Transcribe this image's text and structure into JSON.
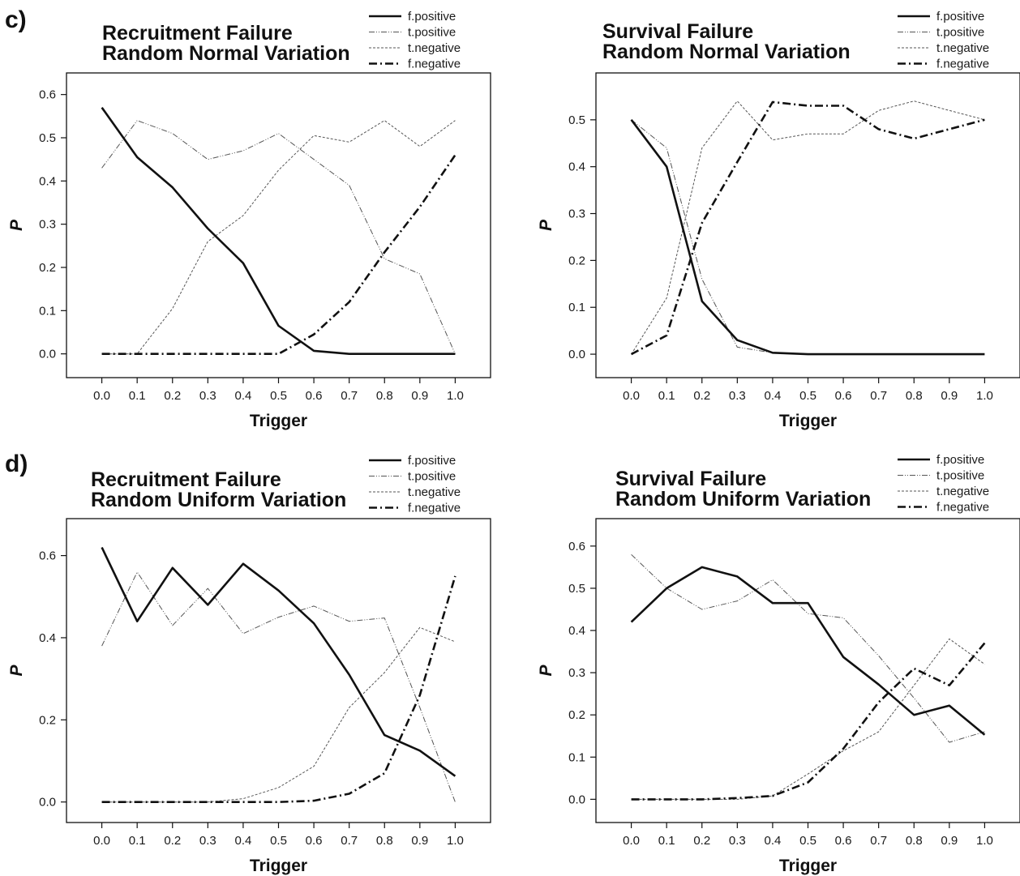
{
  "panel_labels": [
    "c)",
    "d)"
  ],
  "styles": {
    "f.positive": {
      "color": "#111111",
      "width": 2.6,
      "dash": ""
    },
    "t.positive": {
      "color": "#555555",
      "width": 1.0,
      "dash": "7,2,1,2,1,2"
    },
    "t.negative": {
      "color": "#555555",
      "width": 1.0,
      "dash": "3,2"
    },
    "f.negative": {
      "color": "#111111",
      "width": 2.6,
      "dash": "10,4,2,4"
    }
  },
  "chart_data": [
    {
      "type": "line",
      "title": [
        "Recruitment Failure",
        "Random Normal Variation"
      ],
      "xlabel": "Trigger",
      "ylabel": "P",
      "x": [
        0.0,
        0.1,
        0.2,
        0.3,
        0.4,
        0.5,
        0.6,
        0.7,
        0.8,
        0.9,
        1.0
      ],
      "xticks": [
        "0.0",
        "0.1",
        "0.2",
        "0.3",
        "0.4",
        "0.5",
        "0.6",
        "0.7",
        "0.8",
        "0.9",
        "1.0"
      ],
      "yticks": [
        "0.0",
        "0.1",
        "0.2",
        "0.3",
        "0.4",
        "0.5",
        "0.6"
      ],
      "ytick_values": [
        0.0,
        0.1,
        0.2,
        0.3,
        0.4,
        0.5,
        0.6
      ],
      "xlim": [
        -0.1,
        1.1
      ],
      "ylim": [
        -0.055,
        0.65
      ],
      "legend": [
        "f.positive",
        "t.positive",
        "t.negative",
        "f.negative"
      ],
      "series": [
        {
          "name": "f.positive",
          "values": [
            0.57,
            0.455,
            0.385,
            0.29,
            0.21,
            0.065,
            0.007,
            0.0,
            0.0,
            0.0,
            0.0
          ]
        },
        {
          "name": "t.positive",
          "values": [
            0.43,
            0.54,
            0.51,
            0.45,
            0.47,
            0.51,
            0.45,
            0.39,
            0.22,
            0.185,
            0.0
          ]
        },
        {
          "name": "t.negative",
          "values": [
            0.0,
            0.0,
            0.105,
            0.26,
            0.32,
            0.425,
            0.505,
            0.49,
            0.54,
            0.48,
            0.54
          ]
        },
        {
          "name": "f.negative",
          "values": [
            0.0,
            0.0,
            0.0,
            0.0,
            0.0,
            0.0,
            0.045,
            0.12,
            0.235,
            0.34,
            0.46
          ]
        }
      ]
    },
    {
      "type": "line",
      "title": [
        "Survival Failure",
        "Random Normal Variation"
      ],
      "xlabel": "Trigger",
      "ylabel": "P",
      "x": [
        0.0,
        0.1,
        0.2,
        0.3,
        0.4,
        0.5,
        0.6,
        0.7,
        0.8,
        0.9,
        1.0
      ],
      "xticks": [
        "0.0",
        "0.1",
        "0.2",
        "0.3",
        "0.4",
        "0.5",
        "0.6",
        "0.7",
        "0.8",
        "0.9",
        "1.0"
      ],
      "yticks": [
        "0.0",
        "0.1",
        "0.2",
        "0.3",
        "0.4",
        "0.5"
      ],
      "ytick_values": [
        0.0,
        0.1,
        0.2,
        0.3,
        0.4,
        0.5
      ],
      "xlim": [
        -0.1,
        1.1
      ],
      "ylim": [
        -0.05,
        0.6
      ],
      "legend": [
        "f.positive",
        "t.positive",
        "t.negative",
        "f.negative"
      ],
      "series": [
        {
          "name": "f.positive",
          "values": [
            0.5,
            0.4,
            0.113,
            0.03,
            0.003,
            0.0,
            0.0,
            0.0,
            0.0,
            0.0,
            0.0
          ]
        },
        {
          "name": "t.positive",
          "values": [
            0.5,
            0.44,
            0.16,
            0.015,
            0.003,
            0.0,
            0.0,
            0.0,
            0.0,
            0.0,
            0.0
          ]
        },
        {
          "name": "t.negative",
          "values": [
            0.0,
            0.12,
            0.44,
            0.54,
            0.457,
            0.47,
            0.47,
            0.52,
            0.54,
            0.52,
            0.5
          ]
        },
        {
          "name": "f.negative",
          "values": [
            0.0,
            0.04,
            0.28,
            0.41,
            0.538,
            0.53,
            0.53,
            0.48,
            0.46,
            0.48,
            0.5
          ]
        }
      ]
    },
    {
      "type": "line",
      "title": [
        "Recruitment Failure",
        "Random Uniform Variation"
      ],
      "xlabel": "Trigger",
      "ylabel": "P",
      "x": [
        0.0,
        0.1,
        0.2,
        0.3,
        0.4,
        0.5,
        0.6,
        0.7,
        0.8,
        0.9,
        1.0
      ],
      "xticks": [
        "0.0",
        "0.1",
        "0.2",
        "0.3",
        "0.4",
        "0.5",
        "0.6",
        "0.7",
        "0.8",
        "0.9",
        "1.0"
      ],
      "yticks": [
        "0.0",
        "0.2",
        "0.4",
        "0.6"
      ],
      "ytick_values": [
        0.0,
        0.2,
        0.4,
        0.6
      ],
      "xlim": [
        -0.1,
        1.1
      ],
      "ylim": [
        -0.05,
        0.69
      ],
      "legend": [
        "f.positive",
        "t.positive",
        "t.negative",
        "f.negative"
      ],
      "series": [
        {
          "name": "f.positive",
          "values": [
            0.62,
            0.44,
            0.57,
            0.48,
            0.58,
            0.515,
            0.435,
            0.31,
            0.163,
            0.125,
            0.063
          ]
        },
        {
          "name": "t.positive",
          "values": [
            0.38,
            0.56,
            0.43,
            0.52,
            0.41,
            0.45,
            0.477,
            0.44,
            0.448,
            0.23,
            0.0
          ]
        },
        {
          "name": "t.negative",
          "values": [
            0.0,
            0.0,
            0.0,
            0.0,
            0.008,
            0.035,
            0.087,
            0.23,
            0.315,
            0.425,
            0.39
          ]
        },
        {
          "name": "f.negative",
          "values": [
            0.0,
            0.0,
            0.0,
            0.0,
            0.0,
            0.0,
            0.003,
            0.02,
            0.07,
            0.26,
            0.55
          ]
        }
      ]
    },
    {
      "type": "line",
      "title": [
        "Survival Failure",
        "Random Uniform Variation"
      ],
      "xlabel": "Trigger",
      "ylabel": "P",
      "x": [
        0.0,
        0.1,
        0.2,
        0.3,
        0.4,
        0.5,
        0.6,
        0.7,
        0.8,
        0.9,
        1.0
      ],
      "xticks": [
        "0.0",
        "0.1",
        "0.2",
        "0.3",
        "0.4",
        "0.5",
        "0.6",
        "0.7",
        "0.8",
        "0.9",
        "1.0"
      ],
      "yticks": [
        "0.0",
        "0.1",
        "0.2",
        "0.3",
        "0.4",
        "0.5",
        "0.6"
      ],
      "ytick_values": [
        0.0,
        0.1,
        0.2,
        0.3,
        0.4,
        0.5,
        0.6
      ],
      "xlim": [
        -0.1,
        1.1
      ],
      "ylim": [
        -0.055,
        0.665
      ],
      "legend": [
        "f.positive",
        "t.positive",
        "t.negative",
        "f.negative"
      ],
      "series": [
        {
          "name": "f.positive",
          "values": [
            0.42,
            0.5,
            0.55,
            0.528,
            0.465,
            0.465,
            0.337,
            0.272,
            0.2,
            0.222,
            0.153
          ]
        },
        {
          "name": "t.positive",
          "values": [
            0.58,
            0.5,
            0.45,
            0.47,
            0.52,
            0.44,
            0.43,
            0.34,
            0.24,
            0.135,
            0.16
          ]
        },
        {
          "name": "t.negative",
          "values": [
            0.0,
            0.0,
            0.0,
            0.0,
            0.008,
            0.06,
            0.115,
            0.16,
            0.27,
            0.38,
            0.32
          ]
        },
        {
          "name": "f.negative",
          "values": [
            0.0,
            0.0,
            0.0,
            0.003,
            0.008,
            0.04,
            0.12,
            0.23,
            0.31,
            0.27,
            0.37
          ]
        }
      ]
    }
  ]
}
